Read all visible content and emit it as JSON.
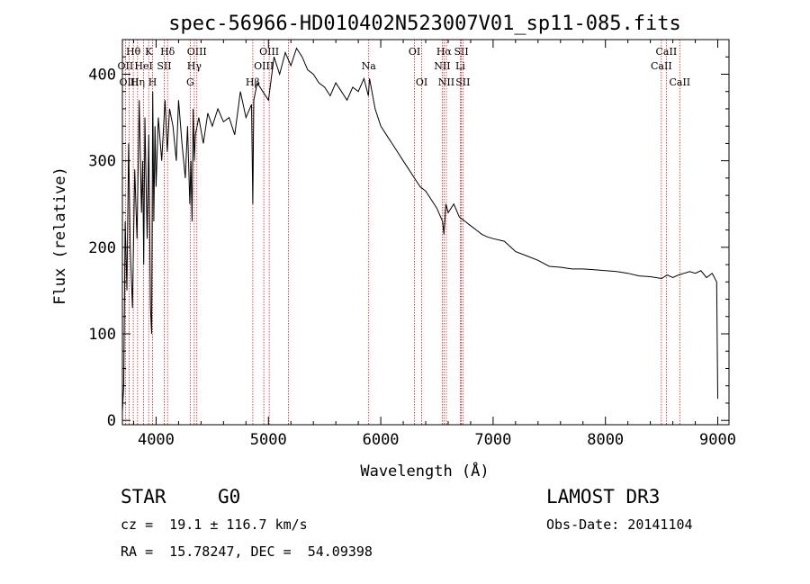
{
  "chart_data": {
    "type": "line",
    "title": "spec-56966-HD010402N523007V01_sp11-085.fits",
    "xlabel": "Wavelength (Å)",
    "ylabel": "Flux (relative)",
    "xlim": [
      3700,
      9100
    ],
    "ylim": [
      -5,
      440
    ],
    "xticks": [
      4000,
      5000,
      6000,
      7000,
      8000,
      9000
    ],
    "yticks": [
      0,
      100,
      200,
      300,
      400
    ],
    "series": [
      {
        "name": "spectrum",
        "x": [
          3700,
          3712,
          3725,
          3740,
          3755,
          3770,
          3790,
          3810,
          3830,
          3850,
          3870,
          3880,
          3890,
          3900,
          3920,
          3935,
          3950,
          3960,
          3970,
          3980,
          3990,
          4000,
          4020,
          4050,
          4080,
          4100,
          4120,
          4150,
          4180,
          4200,
          4230,
          4260,
          4280,
          4300,
          4310,
          4320,
          4330,
          4340,
          4350,
          4380,
          4420,
          4460,
          4500,
          4550,
          4600,
          4650,
          4700,
          4750,
          4800,
          4850,
          4861,
          4870,
          4900,
          4950,
          5000,
          5050,
          5100,
          5150,
          5200,
          5250,
          5300,
          5350,
          5400,
          5450,
          5500,
          5550,
          5600,
          5650,
          5700,
          5750,
          5800,
          5850,
          5890,
          5900,
          5950,
          6000,
          6050,
          6100,
          6150,
          6200,
          6250,
          6300,
          6350,
          6400,
          6450,
          6500,
          6550,
          6563,
          6580,
          6600,
          6650,
          6700,
          6750,
          6800,
          6850,
          6900,
          6950,
          7000,
          7100,
          7200,
          7300,
          7400,
          7500,
          7600,
          7700,
          7800,
          7900,
          8000,
          8100,
          8200,
          8300,
          8400,
          8500,
          8550,
          8600,
          8650,
          8700,
          8750,
          8800,
          8850,
          8900,
          8950,
          8990,
          9000
        ],
        "values": [
          10,
          40,
          230,
          150,
          320,
          200,
          130,
          290,
          210,
          370,
          240,
          300,
          180,
          350,
          210,
          330,
          130,
          100,
          380,
          230,
          340,
          270,
          350,
          300,
          370,
          310,
          360,
          340,
          300,
          370,
          320,
          280,
          340,
          250,
          300,
          230,
          360,
          300,
          330,
          350,
          320,
          355,
          340,
          360,
          345,
          350,
          330,
          380,
          350,
          365,
          250,
          370,
          390,
          380,
          370,
          420,
          400,
          425,
          410,
          430,
          420,
          405,
          400,
          390,
          385,
          375,
          390,
          380,
          370,
          385,
          380,
          395,
          375,
          395,
          360,
          340,
          330,
          320,
          310,
          300,
          290,
          280,
          270,
          265,
          255,
          245,
          230,
          215,
          250,
          240,
          250,
          235,
          230,
          225,
          220,
          215,
          212,
          210,
          207,
          195,
          190,
          185,
          178,
          177,
          175,
          175,
          174,
          173,
          172,
          170,
          167,
          166,
          164,
          168,
          165,
          168,
          170,
          172,
          170,
          173,
          165,
          170,
          160,
          25
        ]
      }
    ],
    "line_markers": [
      {
        "label": "Hθ",
        "x": 3797,
        "row": 1
      },
      {
        "label": "OII",
        "x": 3727,
        "row": 2
      },
      {
        "label": "OIII",
        "x": 3760,
        "row": 3
      },
      {
        "label": "Hη",
        "x": 3835,
        "row": 3
      },
      {
        "label": "K",
        "x": 3934,
        "row": 1
      },
      {
        "label": "HeI",
        "x": 3889,
        "row": 2
      },
      {
        "label": "H",
        "x": 3969,
        "row": 3
      },
      {
        "label": "Hδ",
        "x": 4102,
        "row": 1
      },
      {
        "label": "SII",
        "x": 4072,
        "row": 2
      },
      {
        "label": "OIII",
        "x": 4363,
        "row": 1
      },
      {
        "label": "Hγ",
        "x": 4340,
        "row": 2
      },
      {
        "label": "G",
        "x": 4304,
        "row": 3
      },
      {
        "label": "Hβ",
        "x": 4861,
        "row": 3
      },
      {
        "label": "OIII",
        "x": 5007,
        "row": 1
      },
      {
        "label": "OIII",
        "x": 4959,
        "row": 2
      },
      {
        "label": "",
        "x": 5178,
        "row": 0
      },
      {
        "label": "Na",
        "x": 5893,
        "row": 2
      },
      {
        "label": "OI",
        "x": 6300,
        "row": 1
      },
      {
        "label": "OI",
        "x": 6364,
        "row": 3
      },
      {
        "label": "Hα",
        "x": 6563,
        "row": 1
      },
      {
        "label": "NII",
        "x": 6548,
        "row": 2
      },
      {
        "label": "NII",
        "x": 6584,
        "row": 3
      },
      {
        "label": "SII",
        "x": 6717,
        "row": 1
      },
      {
        "label": "Li",
        "x": 6708,
        "row": 2
      },
      {
        "label": "SII",
        "x": 6731,
        "row": 3
      },
      {
        "label": "CaII",
        "x": 8542,
        "row": 1
      },
      {
        "label": "CaII",
        "x": 8498,
        "row": 2
      },
      {
        "label": "CaII",
        "x": 8662,
        "row": 3
      }
    ]
  },
  "info": {
    "object_class": "STAR",
    "subclass": "G0",
    "survey": "LAMOST DR3",
    "redshift": "cz =  19.1 ± 116.7 km/s",
    "obs_date": "Obs-Date: 20141104",
    "coords": "RA =  15.78247, DEC =  54.09398"
  }
}
